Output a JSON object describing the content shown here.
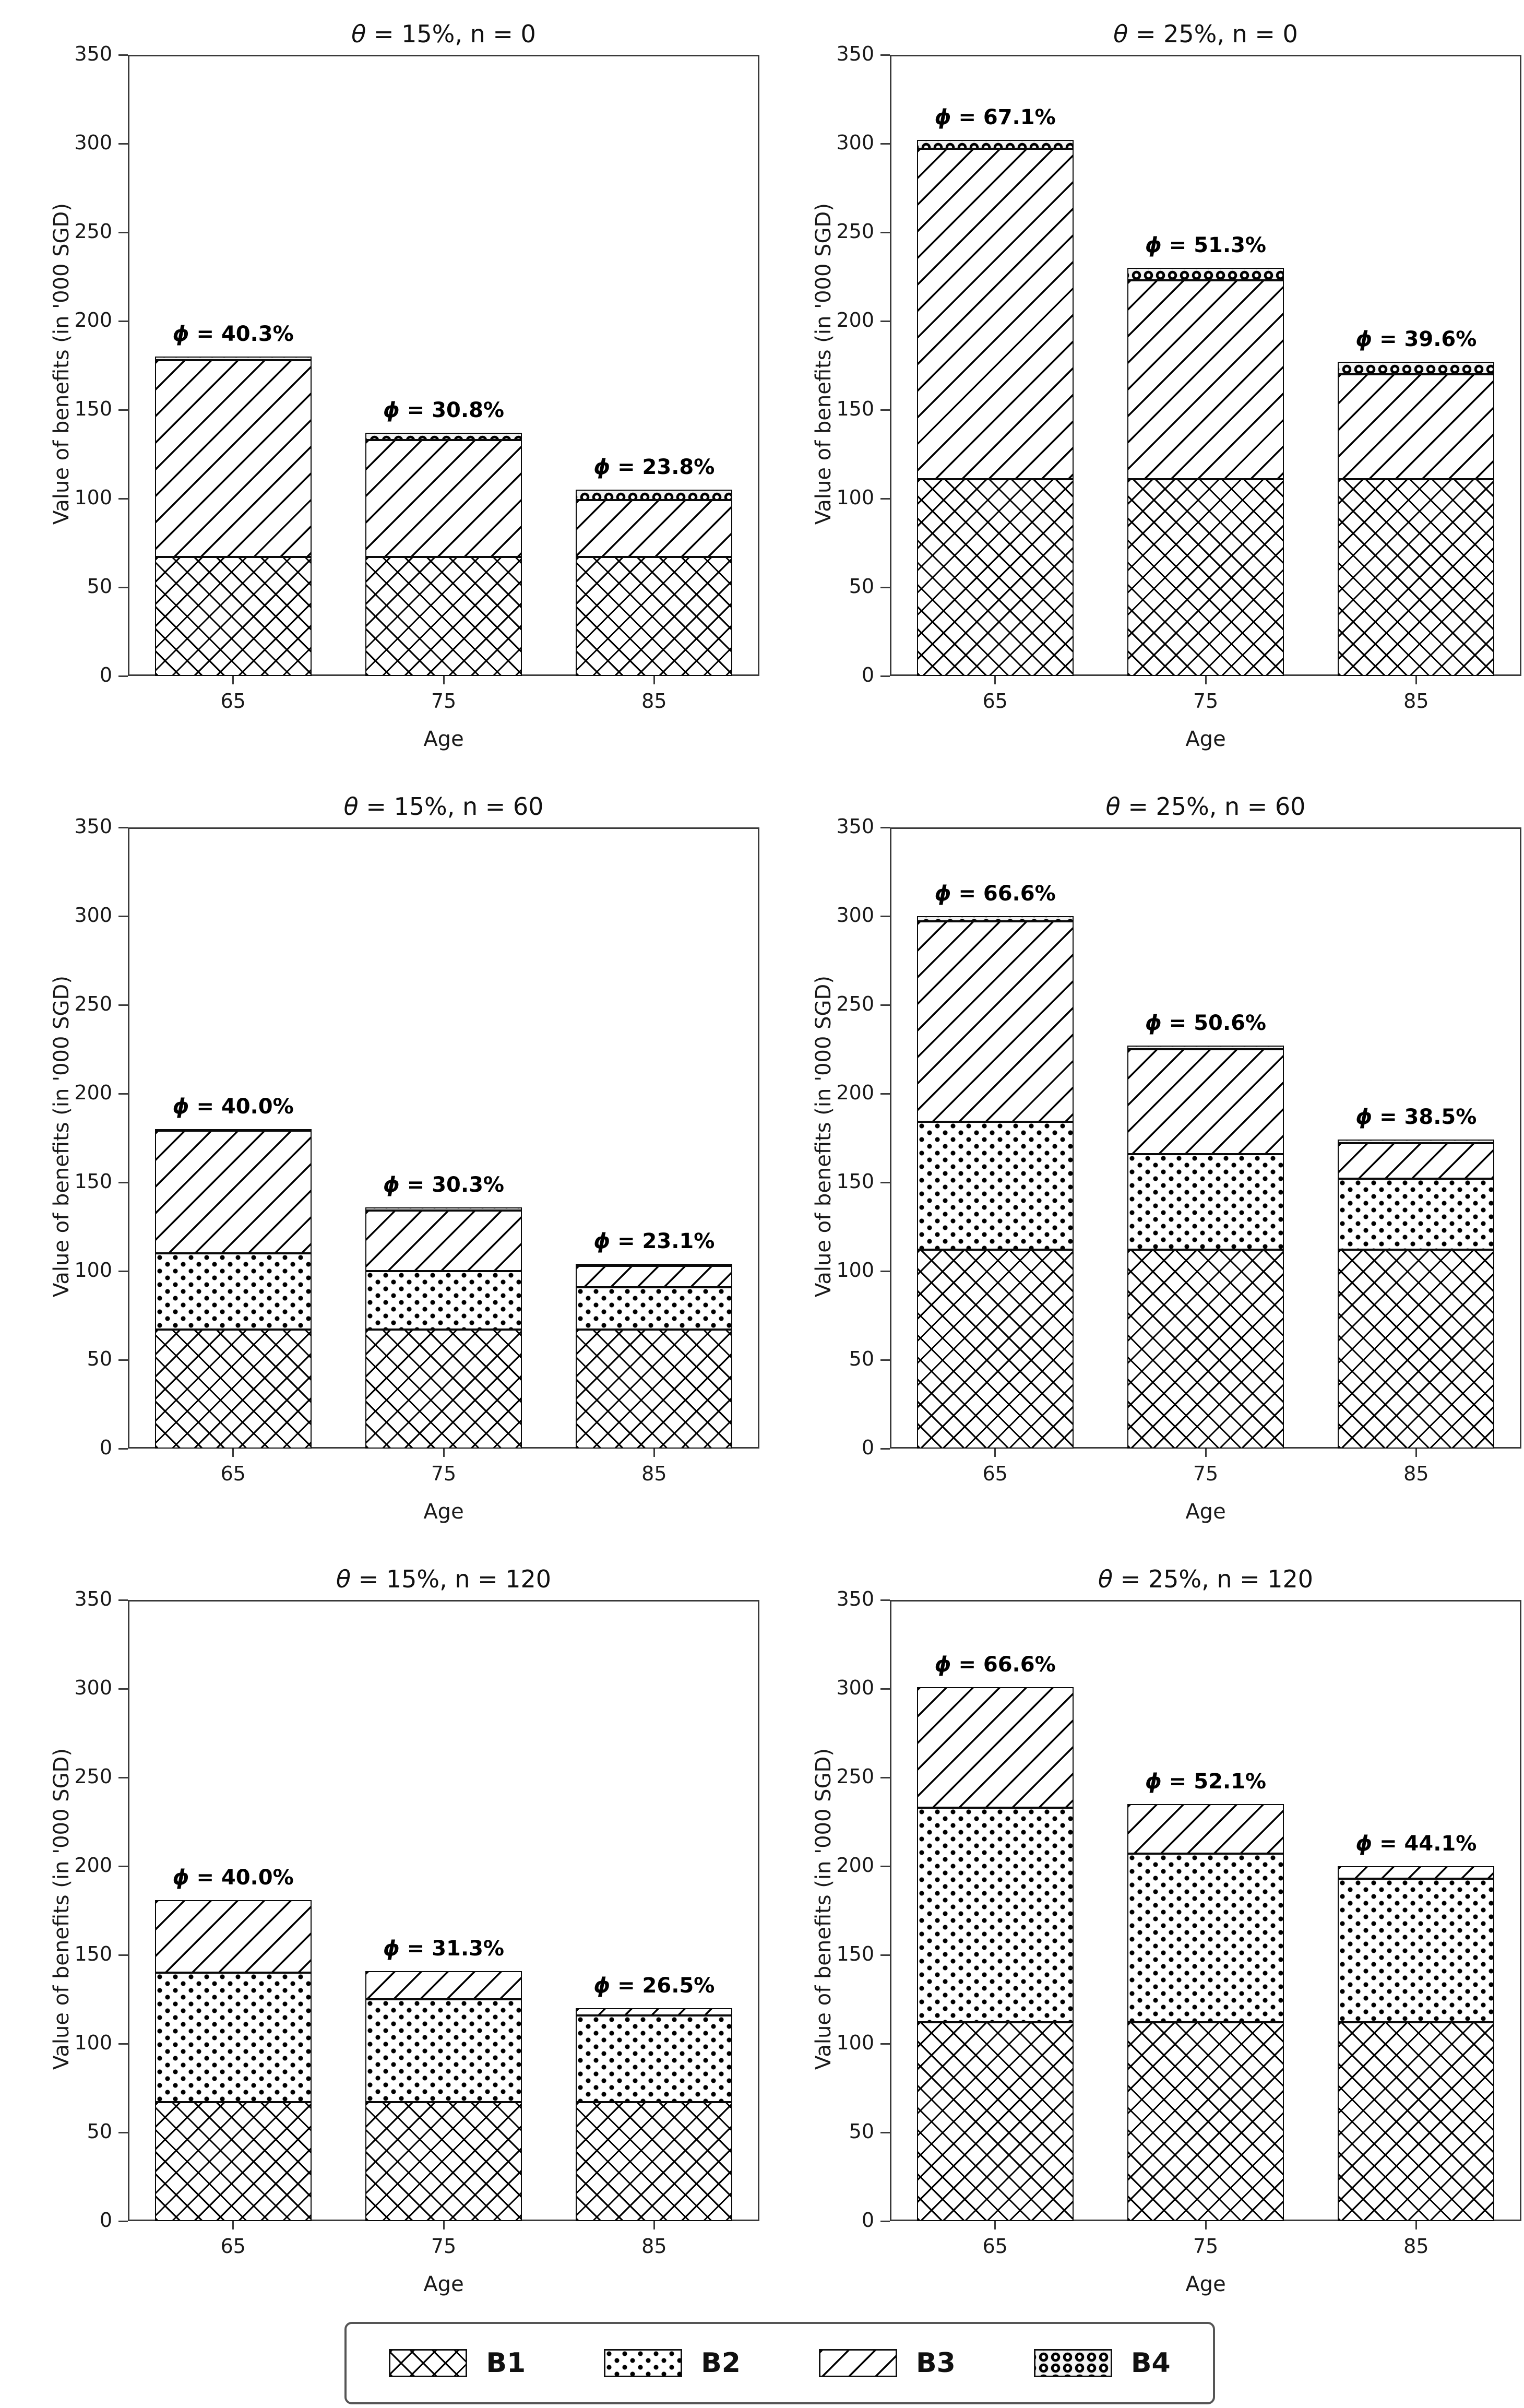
{
  "figure": {
    "background": "#ffffff",
    "line_color": "#000000",
    "axis_color": "#3a3a3a",
    "ylabel": "Value of benefits (in '000 SGD)",
    "xlabel": "Age"
  },
  "legend": {
    "entries": [
      {
        "label": "B1",
        "pattern": "crosshatch"
      },
      {
        "label": "B2",
        "pattern": "dots"
      },
      {
        "label": "B3",
        "pattern": "diagonal"
      },
      {
        "label": "B4",
        "pattern": "circles"
      }
    ]
  },
  "chart_data": [
    {
      "type": "bar",
      "stacked": true,
      "row": 0,
      "col": 0,
      "title": "θ = 15%, n = 0",
      "categories": [
        "65",
        "75",
        "85"
      ],
      "xlabel": "Age",
      "ylabel": "Value of benefits (in '000 SGD)",
      "ylim": [
        0,
        350
      ],
      "yticks": [
        0,
        50,
        100,
        150,
        200,
        250,
        300,
        350
      ],
      "series": [
        {
          "name": "B1",
          "values": [
            67,
            67,
            67
          ]
        },
        {
          "name": "B2",
          "values": [
            0,
            0,
            0
          ]
        },
        {
          "name": "B3",
          "values": [
            111,
            66,
            32
          ]
        },
        {
          "name": "B4",
          "values": [
            2,
            4,
            6
          ]
        }
      ],
      "totals": [
        180,
        137,
        105
      ],
      "annotations": [
        "ϕ = 40.3%",
        "ϕ = 30.8%",
        "ϕ = 23.8%"
      ]
    },
    {
      "type": "bar",
      "stacked": true,
      "row": 0,
      "col": 1,
      "title": "θ = 25%, n = 0",
      "categories": [
        "65",
        "75",
        "85"
      ],
      "xlabel": "Age",
      "ylabel": "Value of benefits (in '000 SGD)",
      "ylim": [
        0,
        350
      ],
      "yticks": [
        0,
        50,
        100,
        150,
        200,
        250,
        300,
        350
      ],
      "series": [
        {
          "name": "B1",
          "values": [
            111,
            111,
            111
          ]
        },
        {
          "name": "B2",
          "values": [
            0,
            0,
            0
          ]
        },
        {
          "name": "B3",
          "values": [
            186,
            112,
            59
          ]
        },
        {
          "name": "B4",
          "values": [
            5,
            7,
            7
          ]
        }
      ],
      "totals": [
        302,
        230,
        177
      ],
      "annotations": [
        "ϕ = 67.1%",
        "ϕ = 51.3%",
        "ϕ = 39.6%"
      ]
    },
    {
      "type": "bar",
      "stacked": true,
      "row": 1,
      "col": 0,
      "title": "θ = 15%, n = 60",
      "categories": [
        "65",
        "75",
        "85"
      ],
      "xlabel": "Age",
      "ylabel": "Value of benefits (in '000 SGD)",
      "ylim": [
        0,
        350
      ],
      "yticks": [
        0,
        50,
        100,
        150,
        200,
        250,
        300,
        350
      ],
      "series": [
        {
          "name": "B1",
          "values": [
            67,
            67,
            67
          ]
        },
        {
          "name": "B2",
          "values": [
            43,
            33,
            24
          ]
        },
        {
          "name": "B3",
          "values": [
            69,
            34,
            12
          ]
        },
        {
          "name": "B4",
          "values": [
            1,
            2,
            1
          ]
        }
      ],
      "totals": [
        180,
        136,
        104
      ],
      "annotations": [
        "ϕ = 40.0%",
        "ϕ = 30.3%",
        "ϕ = 23.1%"
      ]
    },
    {
      "type": "bar",
      "stacked": true,
      "row": 1,
      "col": 1,
      "title": "θ = 25%, n = 60",
      "categories": [
        "65",
        "75",
        "85"
      ],
      "xlabel": "Age",
      "ylabel": "Value of benefits (in '000 SGD)",
      "ylim": [
        0,
        350
      ],
      "yticks": [
        0,
        50,
        100,
        150,
        200,
        250,
        300,
        350
      ],
      "series": [
        {
          "name": "B1",
          "values": [
            112,
            112,
            112
          ]
        },
        {
          "name": "B2",
          "values": [
            72,
            54,
            40
          ]
        },
        {
          "name": "B3",
          "values": [
            113,
            59,
            20
          ]
        },
        {
          "name": "B4",
          "values": [
            3,
            2,
            2
          ]
        }
      ],
      "totals": [
        300,
        227,
        174
      ],
      "annotations": [
        "ϕ = 66.6%",
        "ϕ = 50.6%",
        "ϕ = 38.5%"
      ]
    },
    {
      "type": "bar",
      "stacked": true,
      "row": 2,
      "col": 0,
      "title": "θ = 15%, n = 120",
      "categories": [
        "65",
        "75",
        "85"
      ],
      "xlabel": "Age",
      "ylabel": "Value of benefits (in '000 SGD)",
      "ylim": [
        0,
        350
      ],
      "yticks": [
        0,
        50,
        100,
        150,
        200,
        250,
        300,
        350
      ],
      "series": [
        {
          "name": "B1",
          "values": [
            67,
            67,
            67
          ]
        },
        {
          "name": "B2",
          "values": [
            73,
            58,
            49
          ]
        },
        {
          "name": "B3",
          "values": [
            41,
            16,
            4
          ]
        },
        {
          "name": "B4",
          "values": [
            0,
            0,
            0
          ]
        }
      ],
      "totals": [
        181,
        141,
        120
      ],
      "annotations": [
        "ϕ = 40.0%",
        "ϕ = 31.3%",
        "ϕ = 26.5%"
      ]
    },
    {
      "type": "bar",
      "stacked": true,
      "row": 2,
      "col": 1,
      "title": "θ = 25%, n = 120",
      "categories": [
        "65",
        "75",
        "85"
      ],
      "xlabel": "Age",
      "ylabel": "Value of benefits (in '000 SGD)",
      "ylim": [
        0,
        350
      ],
      "yticks": [
        0,
        50,
        100,
        150,
        200,
        250,
        300,
        350
      ],
      "series": [
        {
          "name": "B1",
          "values": [
            112,
            112,
            112
          ]
        },
        {
          "name": "B2",
          "values": [
            121,
            95,
            81
          ]
        },
        {
          "name": "B3",
          "values": [
            68,
            28,
            7
          ]
        },
        {
          "name": "B4",
          "values": [
            0,
            0,
            0
          ]
        }
      ],
      "totals": [
        301,
        235,
        200
      ],
      "annotations": [
        "ϕ = 66.6%",
        "ϕ = 52.1%",
        "ϕ = 44.1%"
      ]
    }
  ]
}
